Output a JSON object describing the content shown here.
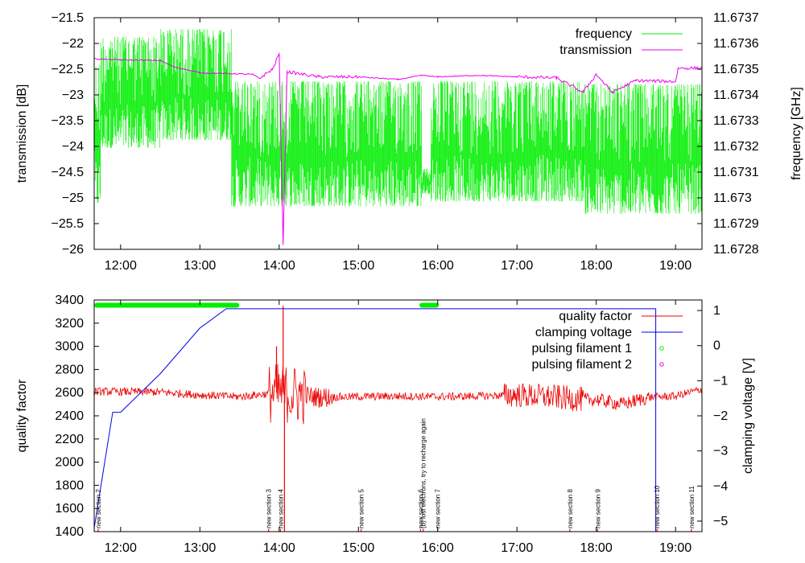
{
  "chart_data": [
    {
      "type": "line",
      "x": {
        "label": "time",
        "range": [
          "11:40",
          "19:20"
        ],
        "ticks": [
          "12:00",
          "13:00",
          "14:00",
          "15:00",
          "16:00",
          "17:00",
          "18:00",
          "19:00"
        ]
      },
      "y_left": {
        "label": "transmission [dB]",
        "range": [
          -26,
          -21.5
        ],
        "ticks": [
          "-21.5",
          "-22",
          "-22.5",
          "-23",
          "-23.5",
          "-24",
          "-24.5",
          "-25",
          "-25.5",
          "-26"
        ]
      },
      "y_right": {
        "label": "frequency [GHz]",
        "range": [
          11.6728,
          11.6737
        ],
        "ticks": [
          "11.6737",
          "11.6736",
          "11.6735",
          "11.6734",
          "11.6733",
          "11.6732",
          "11.6731",
          "11.673",
          "11.6729",
          "11.6728"
        ]
      },
      "legend": {
        "position": "top-right",
        "entries": [
          {
            "name": "frequency",
            "color": "#00ee00"
          },
          {
            "name": "transmission",
            "color": "#ee00ee"
          }
        ]
      },
      "series": [
        {
          "name": "frequency",
          "axis": "right",
          "color": "#00ee00",
          "style": "noisy-band",
          "segments": [
            {
              "t": [
                "11:40",
                "11:45"
              ],
              "low": 11.67294,
              "high": 11.67355
            },
            {
              "t": [
                "11:45",
                "12:30"
              ],
              "low": 11.67317,
              "high": 11.67365
            },
            {
              "t": [
                "12:30",
                "13:24"
              ],
              "low": 11.6732,
              "high": 11.67368
            },
            {
              "t": [
                "13:24",
                "15:48"
              ],
              "low": 11.67294,
              "high": 11.67348
            },
            {
              "t": [
                "15:48",
                "15:55"
              ],
              "low": 11.67301,
              "high": 11.67312
            },
            {
              "t": [
                "15:55",
                "17:50"
              ],
              "low": 11.67296,
              "high": 11.67348
            },
            {
              "t": [
                "17:50",
                "19:20"
              ],
              "low": 11.67291,
              "high": 11.67347
            }
          ]
        },
        {
          "name": "transmission",
          "axis": "left",
          "color": "#ee00ee",
          "points": [
            [
              "11:40",
              -22.3
            ],
            [
              "12:00",
              -22.32
            ],
            [
              "12:30",
              -22.33
            ],
            [
              "12:40",
              -22.45
            ],
            [
              "13:00",
              -22.57
            ],
            [
              "13:40",
              -22.6
            ],
            [
              "13:45",
              -22.68
            ],
            [
              "13:55",
              -22.5
            ],
            [
              "14:00",
              -22.2
            ],
            [
              "14:03",
              -25.9
            ],
            [
              "14:06",
              -22.55
            ],
            [
              "14:30",
              -22.65
            ],
            [
              "15:00",
              -22.65
            ],
            [
              "15:30",
              -22.7
            ],
            [
              "15:48",
              -22.62
            ],
            [
              "16:00",
              -22.65
            ],
            [
              "16:30",
              -22.62
            ],
            [
              "17:00",
              -22.65
            ],
            [
              "17:30",
              -22.67
            ],
            [
              "17:50",
              -22.95
            ],
            [
              "18:00",
              -22.6
            ],
            [
              "18:12",
              -22.95
            ],
            [
              "18:30",
              -22.72
            ],
            [
              "19:00",
              -22.74
            ],
            [
              "19:02",
              -22.48
            ],
            [
              "19:20",
              -22.48
            ]
          ]
        }
      ]
    },
    {
      "type": "line",
      "x": {
        "label": "time",
        "range": [
          "11:40",
          "19:20"
        ],
        "ticks": [
          "12:00",
          "13:00",
          "14:00",
          "15:00",
          "16:00",
          "17:00",
          "18:00",
          "19:00"
        ]
      },
      "y_left": {
        "label": "quality factor",
        "range": [
          1400,
          3400
        ],
        "ticks": [
          "3400",
          "3200",
          "3000",
          "2800",
          "2600",
          "2400",
          "2200",
          "2000",
          "1800",
          "1600",
          "1400"
        ]
      },
      "y_right": {
        "label": "clamping voltage [V]",
        "range": [
          -5.3,
          1.3
        ],
        "ticks": [
          "1",
          "0",
          "-1",
          "-2",
          "-3",
          "-4",
          "-5"
        ]
      },
      "legend": {
        "position": "top-right",
        "entries": [
          {
            "name": "quality factor",
            "color": "#ee0000"
          },
          {
            "name": "clamping voltage",
            "color": "#0000ee"
          },
          {
            "name": "pulsing filament 1",
            "color": "#00ee00"
          },
          {
            "name": "pulsing filament 2",
            "color": "#ee00ee"
          }
        ]
      },
      "series": [
        {
          "name": "quality factor",
          "axis": "left",
          "color": "#ee0000",
          "style": "noisy-line",
          "profile": [
            [
              "11:40",
              2610
            ],
            [
              "12:30",
              2605
            ],
            [
              "13:00",
              2580
            ],
            [
              "13:30",
              2565
            ],
            [
              "14:00",
              2600
            ],
            [
              "14:30",
              2560
            ],
            [
              "15:00",
              2565
            ],
            [
              "15:30",
              2570
            ],
            [
              "16:00",
              2565
            ],
            [
              "16:30",
              2570
            ],
            [
              "17:00",
              2580
            ],
            [
              "17:30",
              2560
            ],
            [
              "17:50",
              2540
            ],
            [
              "18:00",
              2540
            ],
            [
              "18:20",
              2500
            ],
            [
              "18:40",
              2560
            ],
            [
              "19:00",
              2570
            ],
            [
              "19:20",
              2630
            ]
          ],
          "spikes": [
            [
              "13:58",
              3000
            ],
            [
              "14:03",
              3350
            ],
            [
              "14:04",
              1400
            ]
          ]
        },
        {
          "name": "clamping voltage",
          "axis": "right",
          "color": "#0000ee",
          "points": [
            [
              "11:40",
              -5.2
            ],
            [
              "11:54",
              -1.9
            ],
            [
              "12:00",
              -1.9
            ],
            [
              "12:30",
              -0.8
            ],
            [
              "13:00",
              0.5
            ],
            [
              "13:20",
              1.05
            ],
            [
              "18:45",
              1.05
            ],
            [
              "18:45",
              -5.3
            ]
          ]
        },
        {
          "name": "pulsing filament 1",
          "axis": "left",
          "color": "#00ee00",
          "style": "dots",
          "intervals": [
            [
              "11:42",
              "13:28"
            ],
            [
              "15:48",
              "15:59"
            ]
          ],
          "value": 3355
        }
      ],
      "annotations": [
        {
          "t": "11:43",
          "text": "new section 2"
        },
        {
          "t": "13:52",
          "text": "new section 3"
        },
        {
          "t": "14:01",
          "text": "new section 4"
        },
        {
          "t": "15:02",
          "text": "new section 5"
        },
        {
          "t": "15:47",
          "text": "new section 6"
        },
        {
          "t": "15:49",
          "text": "(b) lost electrons, try to recharge again"
        },
        {
          "t": "16:00",
          "text": "new section 7"
        },
        {
          "t": "17:40",
          "text": "new section 8"
        },
        {
          "t": "18:01",
          "text": "new section 9"
        },
        {
          "t": "18:46",
          "text": "new section 10"
        },
        {
          "t": "19:12",
          "text": "new section 11"
        }
      ]
    }
  ]
}
